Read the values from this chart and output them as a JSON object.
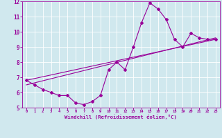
{
  "xlabel": "Windchill (Refroidissement éolien,°C)",
  "bg_color": "#d0e8ee",
  "line_color": "#990099",
  "grid_color": "#ffffff",
  "xlim": [
    -0.5,
    23.5
  ],
  "ylim": [
    5,
    12
  ],
  "xticks": [
    0,
    1,
    2,
    3,
    4,
    5,
    6,
    7,
    8,
    9,
    10,
    11,
    12,
    13,
    14,
    15,
    16,
    17,
    18,
    19,
    20,
    21,
    22,
    23
  ],
  "yticks": [
    5,
    6,
    7,
    8,
    9,
    10,
    11,
    12
  ],
  "line1_x": [
    0,
    1,
    2,
    3,
    4,
    5,
    6,
    7,
    8,
    9,
    10,
    11,
    12,
    13,
    14,
    15,
    16,
    17,
    18,
    19,
    20,
    21,
    22,
    23
  ],
  "line1_y": [
    6.8,
    6.5,
    6.2,
    6.0,
    5.8,
    5.8,
    5.3,
    5.2,
    5.4,
    5.8,
    7.5,
    8.0,
    7.5,
    9.0,
    10.6,
    11.9,
    11.5,
    10.8,
    9.5,
    9.0,
    9.9,
    9.6,
    9.5,
    9.5
  ],
  "line2_x": [
    0,
    23
  ],
  "line2_y": [
    6.8,
    9.5
  ],
  "line3_x": [
    0,
    23
  ],
  "line3_y": [
    6.5,
    9.6
  ]
}
